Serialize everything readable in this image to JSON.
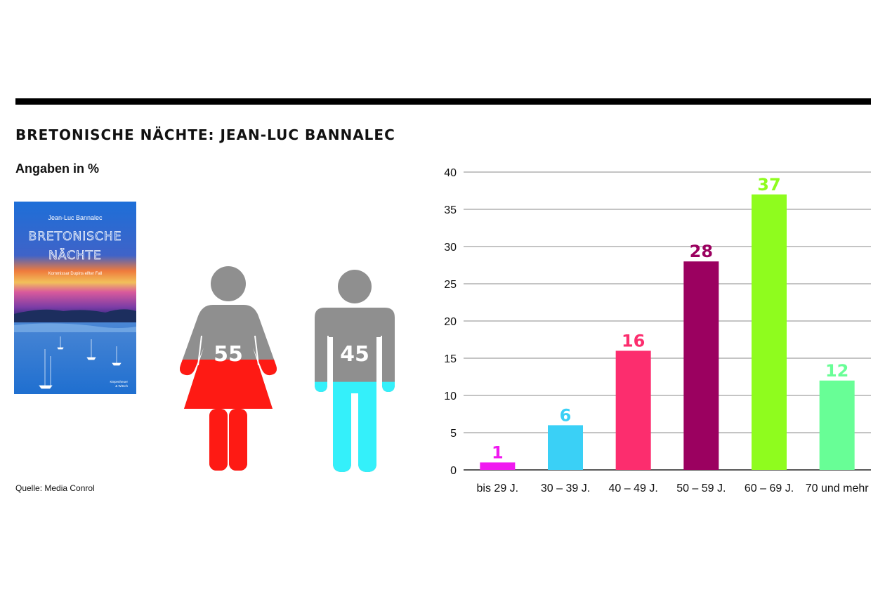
{
  "title": "BRETONISCHE NÄCHTE: JEAN-LUC BANNALEC",
  "subtitle": "Angaben in %",
  "source": "Quelle: Media Conrol",
  "book_cover": {
    "author": "Jean-Luc Bannalec",
    "title_line1": "BRETONISCHE",
    "title_line2": "NÄCHTE",
    "subtitle": "Kommissar Dupins elfter Fall",
    "publisher_line1": "Kiepenheuer",
    "publisher_line2": "& Witsch"
  },
  "gender": {
    "female": {
      "value": 55,
      "label": "55",
      "color": "#fe1a14"
    },
    "male": {
      "value": 45,
      "label": "45",
      "color": "#34f0fa"
    },
    "neutral_color": "#8f8f8f"
  },
  "chart_data": {
    "type": "bar",
    "categories": [
      "bis 29 J.",
      "30 – 39 J.",
      "40 – 49 J.",
      "50 – 59 J.",
      "60 – 69 J.",
      "70 und mehr"
    ],
    "values": [
      1,
      6,
      16,
      28,
      37,
      12
    ],
    "colors": [
      "#f019f0",
      "#3ad0f6",
      "#fc2d6e",
      "#9b0160",
      "#8ffc1e",
      "#68fe96"
    ],
    "ylim": [
      0,
      40
    ],
    "yticks": [
      0,
      5,
      10,
      15,
      20,
      25,
      30,
      35,
      40
    ],
    "grid": true
  }
}
